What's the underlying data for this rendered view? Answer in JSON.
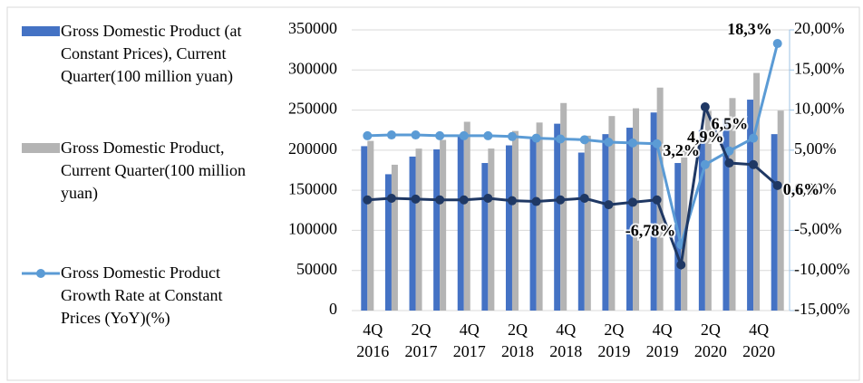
{
  "chart_data": {
    "type": "bar",
    "categories": [
      [
        "4Q",
        "2016"
      ],
      null,
      [
        "2Q",
        "2017"
      ],
      null,
      [
        "4Q",
        "2017"
      ],
      null,
      [
        "2Q",
        "2018"
      ],
      null,
      [
        "4Q",
        "2018"
      ],
      null,
      [
        "2Q",
        "2019"
      ],
      null,
      [
        "4Q",
        "2019"
      ],
      null,
      [
        "2Q",
        "2020"
      ],
      null,
      [
        "4Q",
        "2020"
      ],
      null
    ],
    "series": [
      {
        "name": "Gross Domestic Product (at Constant Prices), Current Quarter(100 million yuan)",
        "type": "bar",
        "color": "#4472c4",
        "values": [
          205000,
          170000,
          192000,
          201000,
          218000,
          184000,
          206000,
          216000,
          233000,
          197000,
          220000,
          228000,
          247000,
          184000,
          225000,
          239000,
          263000,
          220000
        ]
      },
      {
        "name": "Gross Domestic Product, Current Quarter(100 million yuan)",
        "type": "bar",
        "color": "#b4b4b4",
        "values": [
          211566,
          181867,
          201950,
          212790,
          235428,
          202035,
          223962,
          234474,
          258808,
          218063,
          242573,
          252209,
          278020,
          205727,
          248985,
          264976,
          296298,
          249310
        ]
      },
      {
        "name": "Gross Domestic Product Growth Rate at Constant Prices (YoY)(%)",
        "type": "line",
        "axis": "y2",
        "color": "#5b9bd5",
        "values": [
          6.8,
          6.9,
          6.9,
          6.8,
          6.8,
          6.8,
          6.7,
          6.5,
          6.4,
          6.3,
          6.0,
          5.9,
          5.8,
          -6.78,
          3.2,
          4.9,
          6.5,
          18.3
        ],
        "value_labels": [
          null,
          null,
          null,
          null,
          null,
          null,
          null,
          null,
          null,
          null,
          null,
          null,
          null,
          "-6,78%",
          "3,2%",
          "4,9%",
          "6,5%",
          "18,3%"
        ],
        "label_colors": [
          null,
          null,
          null,
          null,
          null,
          null,
          null,
          null,
          null,
          null,
          null,
          null,
          null,
          "#c00000",
          "#2f5597",
          "#2f5597",
          "#2f5597",
          "#c00000"
        ]
      },
      {
        "type": "line",
        "axis": "y2",
        "color": "#1f3864",
        "values": [
          -1.2,
          -1.0,
          -1.1,
          -1.2,
          -1.2,
          -1.0,
          -1.3,
          -1.4,
          -1.2,
          -1.0,
          -1.8,
          -1.5,
          -1.2,
          -9.3,
          10.4,
          3.4,
          3.2,
          0.6
        ],
        "value_labels": [
          null,
          null,
          null,
          null,
          null,
          null,
          null,
          null,
          null,
          null,
          null,
          null,
          null,
          null,
          null,
          null,
          null,
          "0,6%"
        ],
        "label_colors": [
          null,
          null,
          null,
          null,
          null,
          null,
          null,
          null,
          null,
          null,
          null,
          null,
          null,
          null,
          null,
          null,
          null,
          "#c00000"
        ]
      }
    ],
    "ylim": [
      0,
      350000
    ],
    "yticks": [
      0,
      50000,
      100000,
      150000,
      200000,
      250000,
      300000,
      350000
    ],
    "y2lim": [
      -15,
      20
    ],
    "y2ticks": [
      {
        "value": -15,
        "label": "-15,00%"
      },
      {
        "value": -10,
        "label": "-10,00%"
      },
      {
        "value": -5,
        "label": "-5,00%"
      },
      {
        "value": 0,
        "label": "0,00%"
      },
      {
        "value": 5,
        "label": "5,00%"
      },
      {
        "value": 10,
        "label": "10,00%"
      },
      {
        "value": 15,
        "label": "15,00%"
      },
      {
        "value": 20,
        "label": "20,00%"
      }
    ],
    "grid": true,
    "legend": "left"
  }
}
